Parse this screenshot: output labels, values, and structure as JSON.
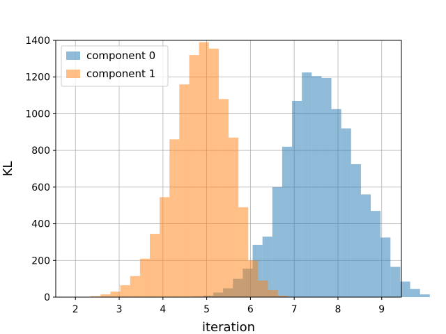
{
  "chart_data": {
    "type": "bar",
    "subtype": "overlaid-histogram",
    "title": "",
    "xlabel": "iteration",
    "ylabel": "KL",
    "xlim": [
      1.55,
      9.45
    ],
    "ylim": [
      0,
      1400
    ],
    "xticks": [
      2,
      3,
      4,
      5,
      6,
      7,
      8,
      9
    ],
    "yticks": [
      0,
      200,
      400,
      600,
      800,
      1000,
      1200,
      1400
    ],
    "grid": true,
    "legend": "top-left",
    "series": [
      {
        "name": "component 0",
        "color": "#1f77b4",
        "alpha": 0.5,
        "bin_start": 4.7,
        "bin_width": 0.225,
        "values": [
          3,
          8,
          25,
          48,
          100,
          155,
          285,
          330,
          600,
          820,
          1070,
          1225,
          1205,
          1195,
          1025,
          920,
          725,
          560,
          470,
          325,
          165,
          85,
          45,
          15,
          0
        ]
      },
      {
        "name": "component 1",
        "color": "#ff7f0e",
        "alpha": 0.5,
        "bin_start": 2.35,
        "bin_width": 0.225,
        "values": [
          5,
          15,
          30,
          65,
          115,
          210,
          345,
          545,
          860,
          1160,
          1320,
          1390,
          1355,
          1080,
          870,
          490,
          200,
          90,
          38,
          8
        ]
      }
    ]
  }
}
